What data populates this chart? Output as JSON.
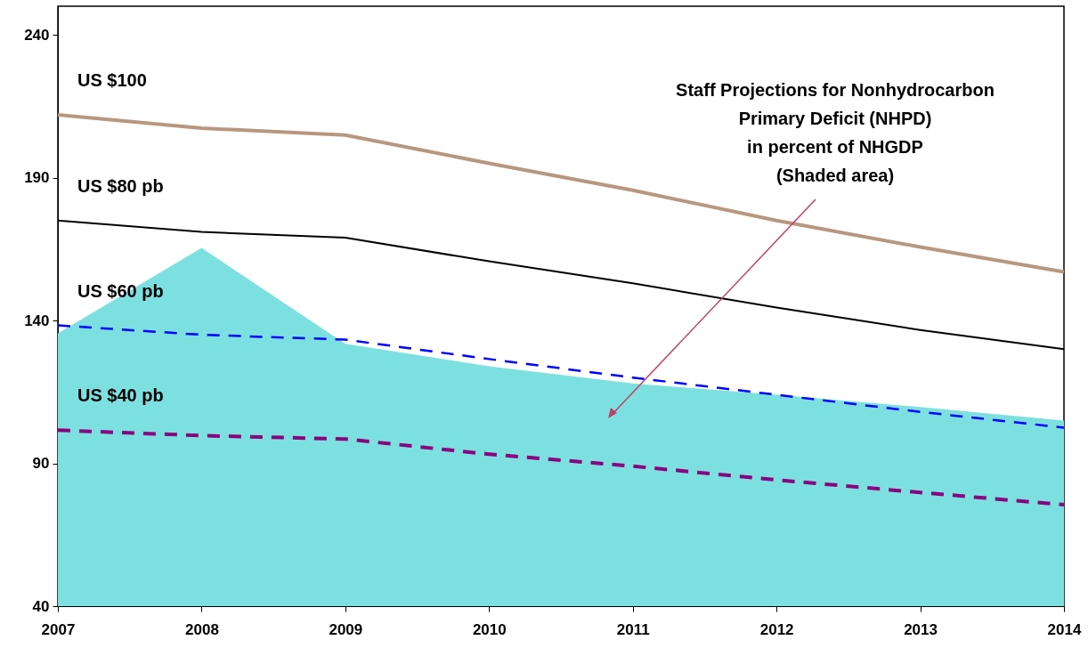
{
  "chart_data": {
    "type": "line",
    "x": [
      2007,
      2008,
      2009,
      2010,
      2011,
      2012,
      2013,
      2014
    ],
    "xlim": [
      2007,
      2014
    ],
    "xticks": [
      2007,
      2008,
      2009,
      2010,
      2011,
      2012,
      2013,
      2014
    ],
    "ylim": [
      40,
      250
    ],
    "yticks": [
      40,
      90,
      140,
      190,
      240
    ],
    "grid": false,
    "marker": "none",
    "annotations": [
      "Staff Projections for Nonhydrocarbon\nPrimary Deficit (NHPD)\nin percent of NHGDP\n(Shaded area)"
    ],
    "series": [
      {
        "type": "area",
        "color": "#7de0e0",
        "values": [
          135.5,
          165.4,
          131.8,
          124,
          118,
          114,
          109.7,
          105
        ]
      },
      {
        "name": "US $100",
        "color": "#b8977e",
        "line_style": "solid",
        "values": [
          212,
          207.3,
          204.9,
          195,
          185.6,
          175,
          165.7,
          157
        ]
      },
      {
        "name": "US $80 pb",
        "color": "#000000",
        "line_style": "solid",
        "values": [
          175,
          171,
          169,
          160.7,
          153,
          144.5,
          136.7,
          130
        ]
      },
      {
        "name": "US $60 pb",
        "color": "#0000ff",
        "line_style": "dashed",
        "values": [
          138.3,
          135,
          133.3,
          126.5,
          120,
          114,
          108,
          102.5
        ]
      },
      {
        "name": "US $40 pb",
        "color": "#8b0080",
        "line_style": "dashed",
        "values": [
          101.6,
          99.7,
          98.5,
          93.2,
          89,
          84.2,
          79.8,
          75.5
        ]
      }
    ]
  }
}
